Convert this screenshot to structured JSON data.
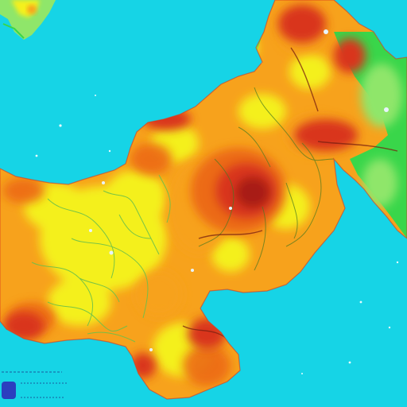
{
  "map": {
    "legend": {
      "lines": [
        "",
        "",
        ""
      ],
      "swatch_color": "#2b3fbf"
    },
    "colors": {
      "sea": "#16d4e6",
      "low_green": "#39d64a",
      "pale_green": "#8fe66a",
      "yellow": "#f4f01e",
      "orange": "#f7a21c",
      "dark_orange": "#ec6a14",
      "red": "#d9351c",
      "dark_red": "#a81e14",
      "river": "#6cc04a",
      "border": "#7a2010"
    }
  }
}
